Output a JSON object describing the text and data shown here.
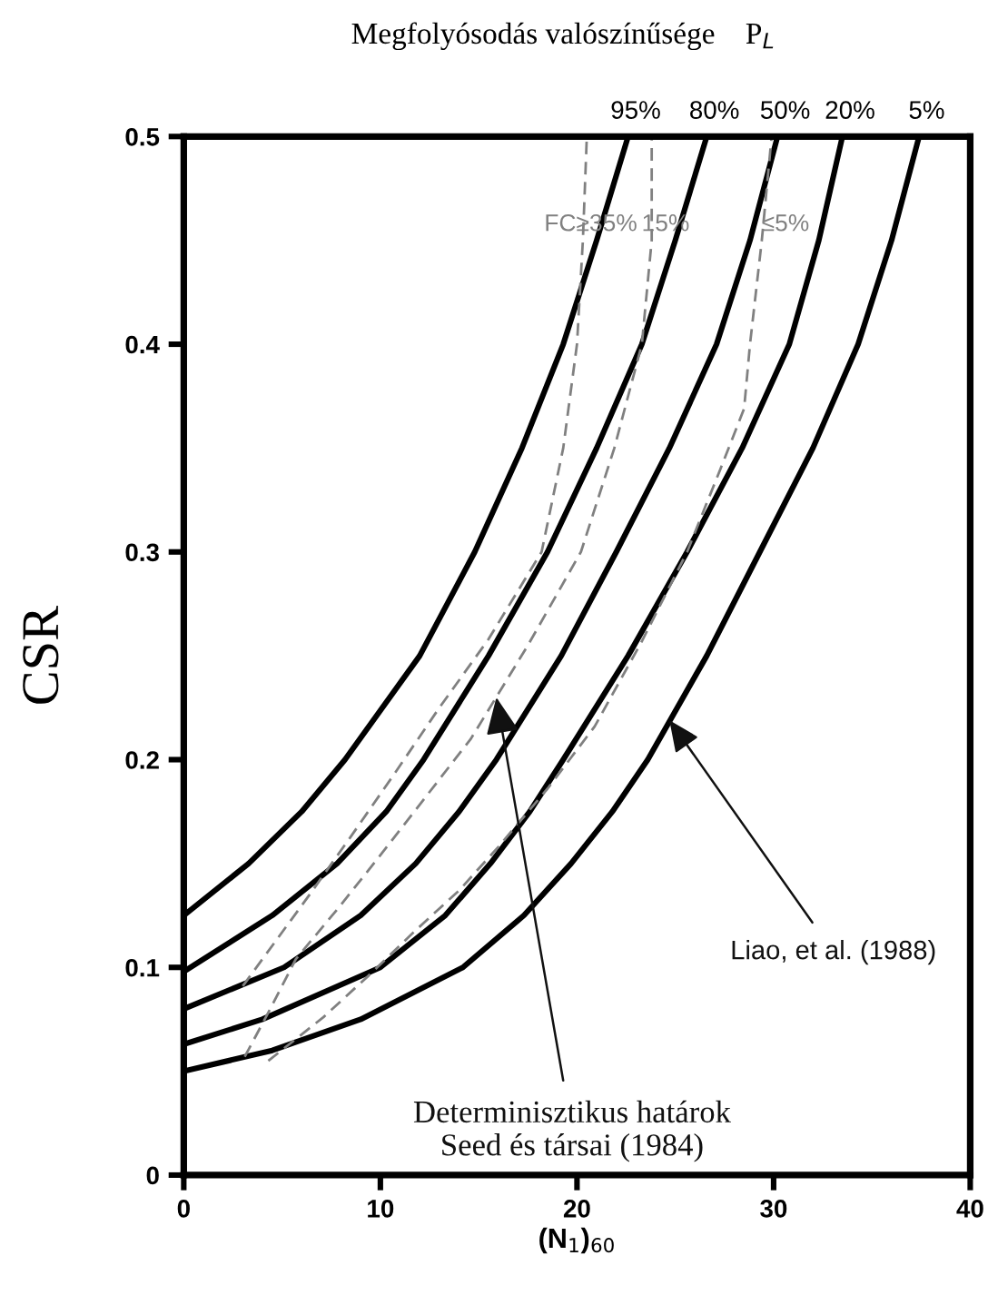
{
  "chart_data": {
    "type": "line",
    "title": "Megfolyósodás valószínűsége    P$_{L}$",
    "xlabel": "(N$_{1}$)$_{60}$",
    "ylabel": "CSR",
    "xlim": [
      0,
      40
    ],
    "xticks": [
      0,
      10,
      20,
      30,
      40
    ],
    "ylim": [
      0,
      0.5
    ],
    "yticks": [
      0,
      0.1,
      0.2,
      0.3,
      0.4,
      0.5
    ],
    "grid": false,
    "legend": false,
    "marker": "none",
    "series": [
      {
        "name": "95%",
        "color": "#000000",
        "line_style": "solid",
        "x": [
          0,
          3.3,
          6.0,
          8.2,
          12.0,
          14.8,
          17.2,
          19.3,
          21.0,
          22.6
        ],
        "values": [
          0.125,
          0.15,
          0.175,
          0.2,
          0.25,
          0.3,
          0.35,
          0.4,
          0.45,
          0.5
        ]
      },
      {
        "name": "80%",
        "color": "#000000",
        "line_style": "solid",
        "x": [
          0,
          4.5,
          7.8,
          10.3,
          12.2,
          15.5,
          18.5,
          21.0,
          23.3,
          25.0,
          26.6
        ],
        "values": [
          0.098,
          0.125,
          0.15,
          0.175,
          0.2,
          0.25,
          0.3,
          0.35,
          0.4,
          0.45,
          0.5
        ]
      },
      {
        "name": "50%",
        "color": "#000000",
        "line_style": "solid",
        "x": [
          0,
          5.1,
          9.0,
          11.8,
          14.0,
          15.9,
          19.2,
          22.0,
          24.7,
          27.1,
          28.8,
          30.2
        ],
        "values": [
          0.08,
          0.1,
          0.125,
          0.15,
          0.175,
          0.2,
          0.25,
          0.3,
          0.35,
          0.4,
          0.45,
          0.5
        ]
      },
      {
        "name": "20%",
        "color": "#000000",
        "line_style": "solid",
        "x": [
          0,
          4.0,
          10.0,
          13.3,
          15.6,
          17.6,
          19.3,
          22.6,
          25.6,
          28.4,
          30.8,
          32.3,
          33.5
        ],
        "values": [
          0.063,
          0.075,
          0.1,
          0.125,
          0.15,
          0.175,
          0.2,
          0.25,
          0.3,
          0.35,
          0.4,
          0.45,
          0.5
        ]
      },
      {
        "name": "5%",
        "color": "#000000",
        "line_style": "solid",
        "x": [
          0,
          4.5,
          9.0,
          14.2,
          17.3,
          19.7,
          21.8,
          23.6,
          26.6,
          29.3,
          32.0,
          34.3,
          36.0,
          37.4
        ],
        "values": [
          0.05,
          0.06,
          0.075,
          0.1,
          0.125,
          0.15,
          0.175,
          0.2,
          0.25,
          0.3,
          0.35,
          0.4,
          0.45,
          0.5
        ]
      },
      {
        "name": "FC≥35%",
        "color": "#808080",
        "line_style": "dashed",
        "x": [
          3.0,
          4.7,
          6.4,
          8.5,
          10.7,
          13.0,
          15.5,
          18.2,
          19.3,
          20.0,
          20.3,
          20.5
        ],
        "values": [
          0.091,
          0.113,
          0.135,
          0.163,
          0.193,
          0.225,
          0.258,
          0.3,
          0.35,
          0.4,
          0.45,
          0.5
        ]
      },
      {
        "name": "15%",
        "color": "#808080",
        "line_style": "dashed",
        "x": [
          3.1,
          4.4,
          5.7,
          7.9,
          10.0,
          12.3,
          14.6,
          17.5,
          20.2,
          21.9,
          23.3,
          23.8,
          23.8
        ],
        "values": [
          0.057,
          0.08,
          0.104,
          0.129,
          0.154,
          0.182,
          0.21,
          0.255,
          0.3,
          0.35,
          0.4,
          0.45,
          0.5
        ]
      },
      {
        "name": "≤5%",
        "color": "#808080",
        "line_style": "dashed",
        "x": [
          4.3,
          7.1,
          9.4,
          11.7,
          14.0,
          16.0,
          18.5,
          20.9,
          23.3,
          25.6,
          27.3,
          28.5,
          28.8,
          29.4,
          29.9
        ],
        "values": [
          0.055,
          0.076,
          0.096,
          0.117,
          0.137,
          0.158,
          0.186,
          0.216,
          0.257,
          0.3,
          0.34,
          0.369,
          0.4,
          0.45,
          0.5
        ]
      }
    ],
    "annotations": [
      {
        "text": "Determinisztikus határok\nSeed és társai (1984)",
        "x": 15.9,
        "y": 0.23
      },
      {
        "text": "Liao, et al. (1988)",
        "x": 24.7,
        "y": 0.219
      }
    ]
  }
}
